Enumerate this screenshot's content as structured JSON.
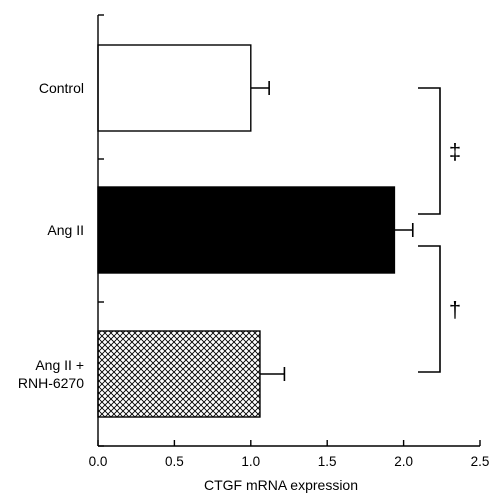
{
  "chart_data": {
    "type": "bar",
    "orientation": "horizontal",
    "xlabel": "CTGF mRNA expression",
    "xlim": [
      0.0,
      2.5
    ],
    "xticks": [
      "0.0",
      "0.5",
      "1.0",
      "1.5",
      "2.0",
      "2.5"
    ],
    "grid": false,
    "categories": [
      {
        "lines": [
          "Control"
        ],
        "value": 1.0,
        "error": 0.12,
        "fill": "white"
      },
      {
        "lines": [
          "Ang II"
        ],
        "value": 1.94,
        "error": 0.12,
        "fill": "black"
      },
      {
        "lines": [
          "Ang II +",
          "RNH-6270"
        ],
        "value": 1.06,
        "error": 0.16,
        "fill": "crosshatch"
      }
    ],
    "annotations": [
      {
        "symbol": "‡",
        "from": 0,
        "to": 1
      },
      {
        "symbol": "†",
        "from": 1,
        "to": 2
      }
    ]
  }
}
